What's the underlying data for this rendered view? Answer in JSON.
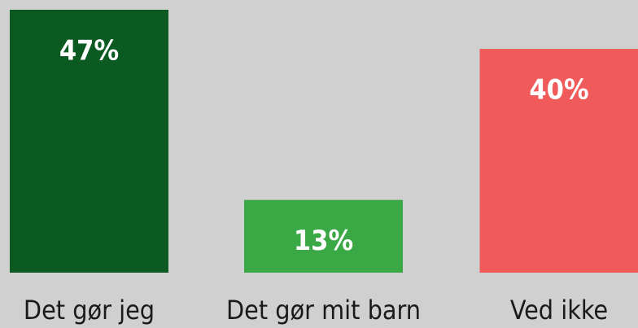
{
  "chart_data": {
    "type": "bar",
    "categories": [
      "Det gør jeg",
      "Det gør mit barn",
      "Ved ikke"
    ],
    "values": [
      47,
      13,
      40
    ],
    "value_labels": [
      "47%",
      "13%",
      "40%"
    ],
    "colors": [
      "#0b5a22",
      "#3aa845",
      "#f05a5a"
    ]
  }
}
